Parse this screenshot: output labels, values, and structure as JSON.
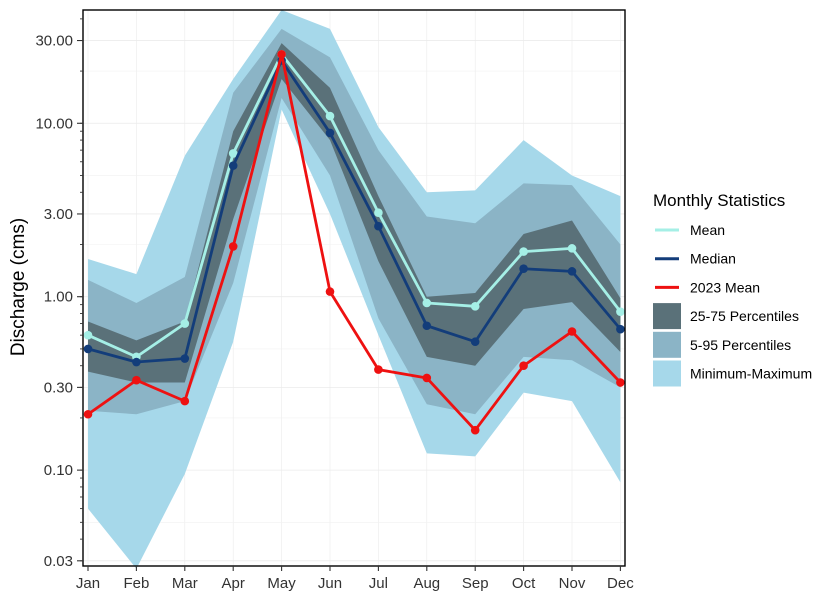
{
  "chart_data": {
    "type": "area",
    "title": "",
    "xlabel": "",
    "ylabel": "Discharge (cms)",
    "yscale": "log",
    "ylim": [
      0.028,
      45
    ],
    "yticks": [
      0.03,
      0.1,
      0.3,
      1.0,
      3.0,
      10.0,
      30.0
    ],
    "ytick_labels": [
      "0.03",
      "0.10",
      "0.30",
      "1.00",
      "3.00",
      "10.00",
      "30.00"
    ],
    "categories": [
      "Jan",
      "Feb",
      "Mar",
      "Apr",
      "May",
      "Jun",
      "Jul",
      "Aug",
      "Sep",
      "Oct",
      "Nov",
      "Dec"
    ],
    "bands": [
      {
        "name": "Minimum-Maximum",
        "color": "#a6d8ea",
        "lower": [
          0.06,
          0.027,
          0.095,
          0.55,
          12,
          3.0,
          0.6,
          0.125,
          0.12,
          0.28,
          0.25,
          0.085
        ],
        "upper": [
          1.65,
          1.35,
          6.5,
          18,
          45,
          35,
          9.5,
          4.0,
          4.1,
          8.0,
          5.0,
          3.8
        ]
      },
      {
        "name": "5-95 Percentiles",
        "color": "#8bb4c6",
        "lower": [
          0.22,
          0.21,
          0.25,
          1.2,
          14,
          5.0,
          0.75,
          0.24,
          0.21,
          0.45,
          0.43,
          0.3
        ],
        "upper": [
          1.25,
          0.92,
          1.3,
          15,
          35,
          24,
          7.0,
          2.9,
          2.65,
          4.5,
          4.4,
          2.0
        ]
      },
      {
        "name": "25-75 Percentiles",
        "color": "#5a7179",
        "lower": [
          0.37,
          0.32,
          0.32,
          2.8,
          18,
          8.0,
          1.6,
          0.45,
          0.4,
          0.85,
          0.93,
          0.48
        ],
        "upper": [
          0.72,
          0.56,
          0.72,
          9.0,
          29,
          16,
          3.8,
          1.0,
          1.05,
          2.3,
          2.75,
          0.98
        ]
      }
    ],
    "series": [
      {
        "name": "Mean",
        "color": "#a5efe6",
        "values": [
          0.6,
          0.45,
          0.7,
          6.7,
          25,
          11,
          3.05,
          0.92,
          0.88,
          1.82,
          1.9,
          0.82
        ]
      },
      {
        "name": "Median",
        "color": "#133d7a",
        "values": [
          0.5,
          0.42,
          0.44,
          5.7,
          23,
          8.8,
          2.55,
          0.68,
          0.55,
          1.45,
          1.4,
          0.65
        ]
      },
      {
        "name": "2023 Mean",
        "color": "#ee1111",
        "values": [
          0.21,
          0.33,
          0.25,
          1.95,
          25,
          1.07,
          0.38,
          0.34,
          0.17,
          0.4,
          0.63,
          0.32
        ]
      }
    ],
    "legend": {
      "title": "Monthly Statistics",
      "position": "right",
      "entries": [
        {
          "label": "Mean",
          "kind": "line",
          "color": "#a5efe6"
        },
        {
          "label": "Median",
          "kind": "line",
          "color": "#133d7a"
        },
        {
          "label": "2023 Mean",
          "kind": "line",
          "color": "#ee1111"
        },
        {
          "label": "25-75 Percentiles",
          "kind": "fill",
          "color": "#5a7179"
        },
        {
          "label": "5-95 Percentiles",
          "kind": "fill",
          "color": "#8bb4c6"
        },
        {
          "label": "Minimum-Maximum",
          "kind": "fill",
          "color": "#a6d8ea"
        }
      ]
    },
    "grid": true
  }
}
